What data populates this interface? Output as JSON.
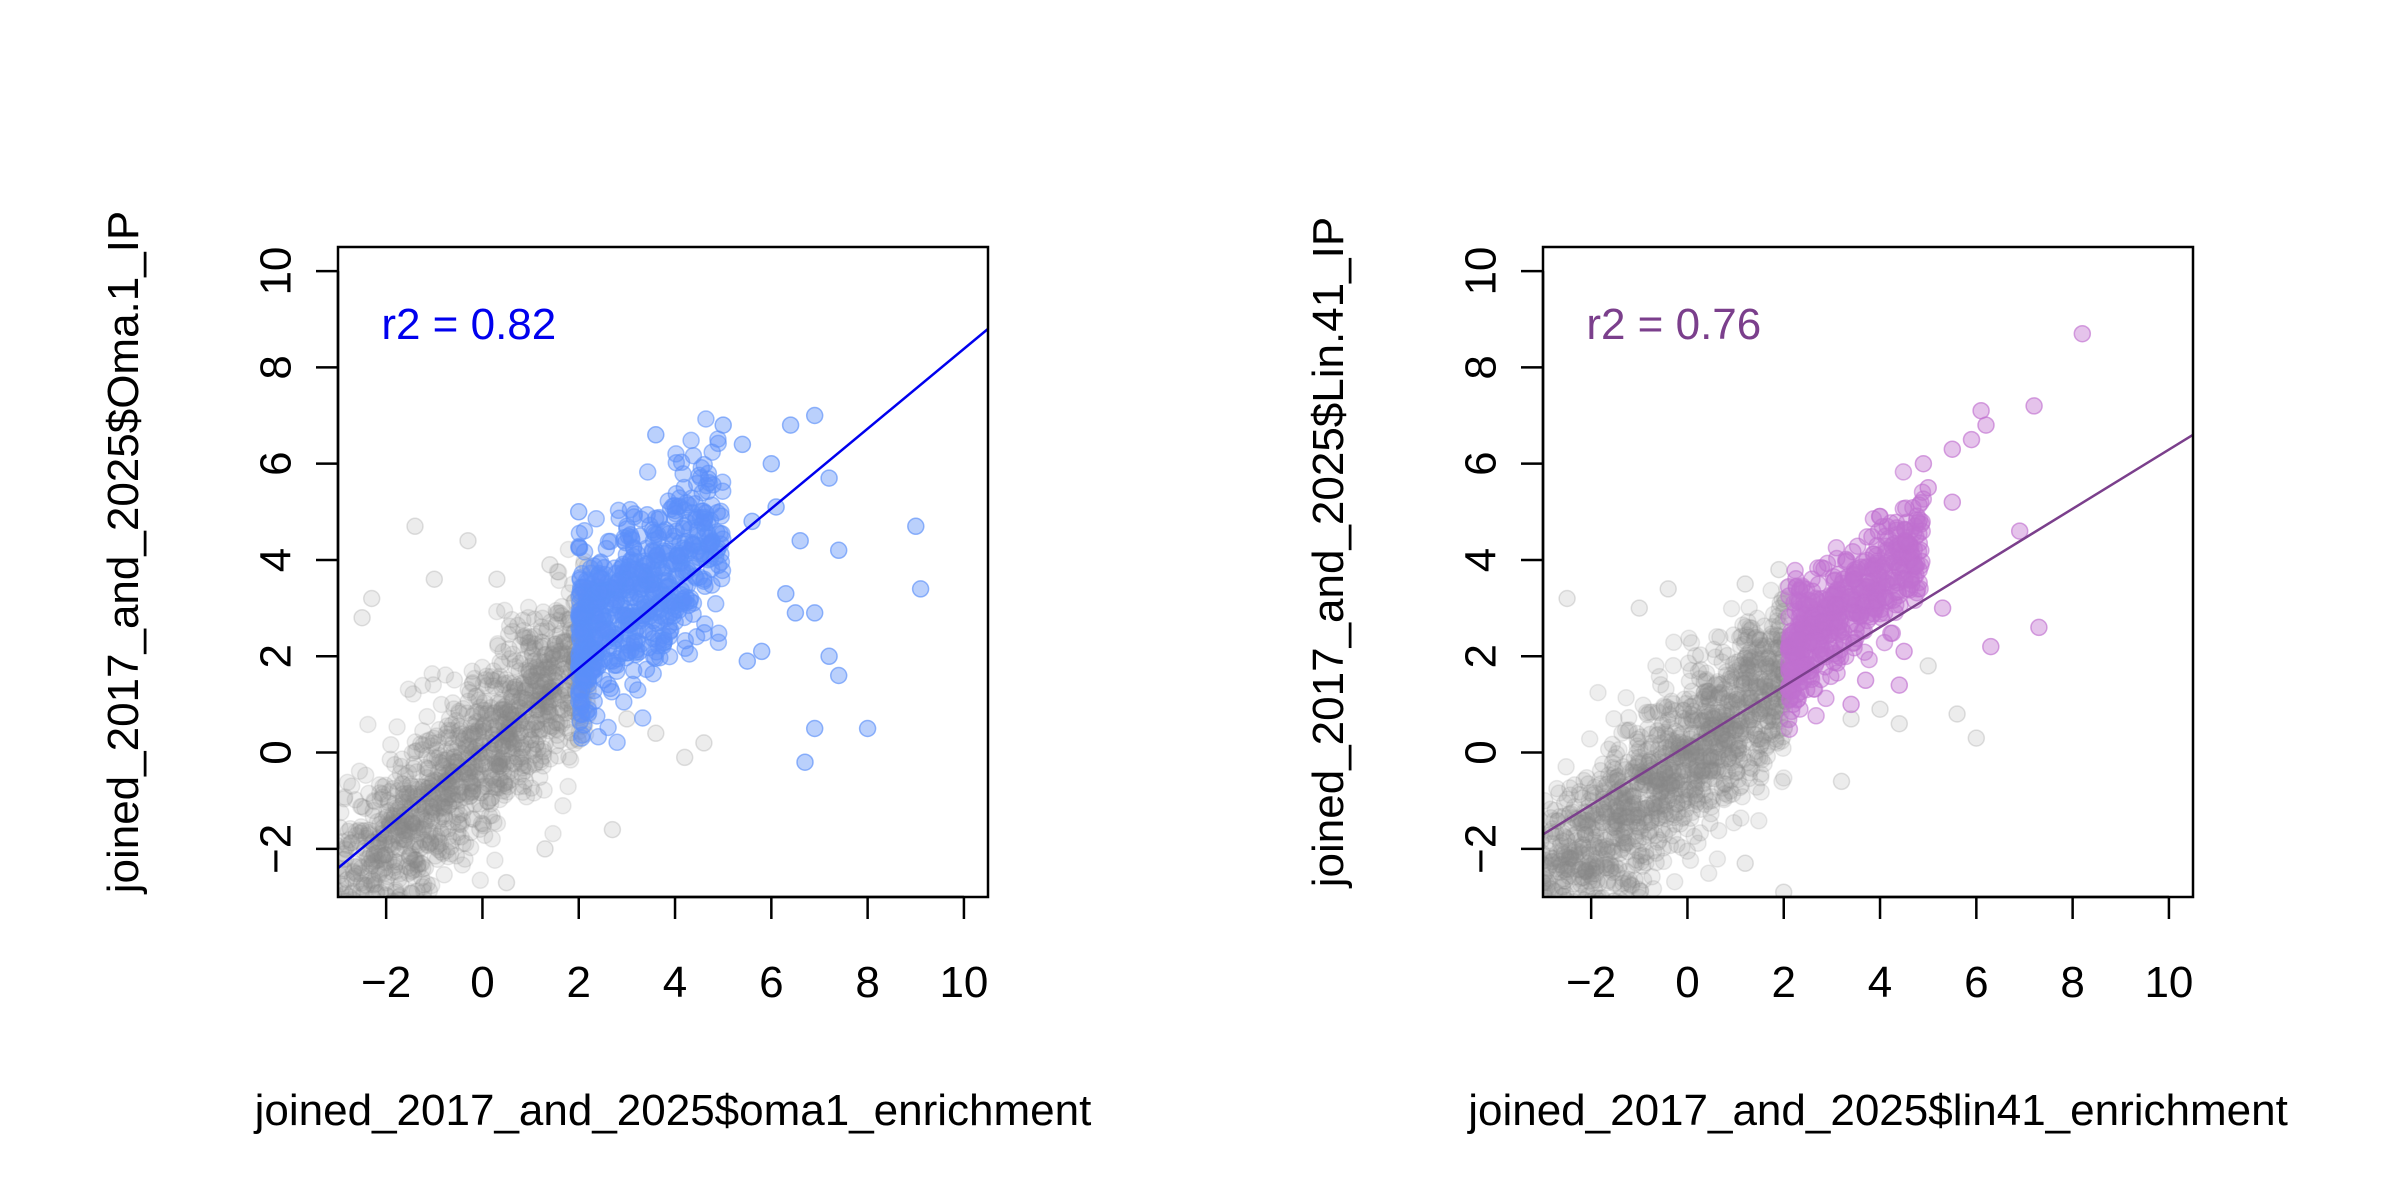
{
  "chart_data": [
    {
      "type": "scatter",
      "title": "",
      "xlabel": "joined_2017_and_2025$oma1_enrichment",
      "ylabel": "joined_2017_and_2025$Oma.1_IP",
      "xlim": [
        -3,
        10.5
      ],
      "ylim": [
        -3,
        10.5
      ],
      "xticks": [
        -2,
        0,
        2,
        4,
        6,
        8,
        10
      ],
      "yticks": [
        -2,
        0,
        2,
        4,
        6,
        8,
        10
      ],
      "grid": false,
      "annotation": {
        "text": "r2 = 0.82",
        "x": -2.1,
        "y": 8.9,
        "color": "#0000ee"
      },
      "fit_line": {
        "color": "#0000ee",
        "x": [
          -3,
          10.5
        ],
        "y": [
          -2.4,
          8.8
        ]
      },
      "series": [
        {
          "color": "#888888",
          "cloud": {
            "x_range": [
              -3.2,
              2.2
            ],
            "center_slope": 1.0,
            "center_intercept": 0.0,
            "spread": 0.9,
            "count": 1400
          },
          "points": [
            {
              "x": -2.3,
              "y": 3.2
            },
            {
              "x": -1.4,
              "y": 4.7
            },
            {
              "x": -1.0,
              "y": 3.6
            },
            {
              "x": -0.3,
              "y": 4.4
            },
            {
              "x": 0.3,
              "y": 3.6
            },
            {
              "x": 1.4,
              "y": 3.9
            },
            {
              "x": 2.1,
              "y": 3.9
            },
            {
              "x": -2.5,
              "y": 2.8
            },
            {
              "x": 3.0,
              "y": 0.7
            },
            {
              "x": 4.2,
              "y": -0.1
            },
            {
              "x": 4.6,
              "y": 0.2
            },
            {
              "x": 2.7,
              "y": -1.6
            },
            {
              "x": 1.3,
              "y": -2.0
            },
            {
              "x": 0.5,
              "y": -2.7
            },
            {
              "x": 3.6,
              "y": 0.4
            }
          ]
        },
        {
          "color": "#5b8ff9",
          "cloud": {
            "x_range": [
              2.0,
              5.0
            ],
            "center_slope": 0.8,
            "center_intercept": 0.7,
            "spread": 0.9,
            "count": 650
          },
          "points": [
            {
              "x": 3.6,
              "y": 6.6
            },
            {
              "x": 5.0,
              "y": 6.8
            },
            {
              "x": 5.4,
              "y": 6.4
            },
            {
              "x": 6.4,
              "y": 6.8
            },
            {
              "x": 6.9,
              "y": 7.0
            },
            {
              "x": 6.0,
              "y": 6.0
            },
            {
              "x": 7.2,
              "y": 5.7
            },
            {
              "x": 6.6,
              "y": 4.4
            },
            {
              "x": 7.4,
              "y": 4.2
            },
            {
              "x": 9.0,
              "y": 4.7
            },
            {
              "x": 9.1,
              "y": 3.4
            },
            {
              "x": 6.3,
              "y": 3.3
            },
            {
              "x": 6.5,
              "y": 2.9
            },
            {
              "x": 6.9,
              "y": 2.9
            },
            {
              "x": 7.2,
              "y": 2.0
            },
            {
              "x": 7.4,
              "y": 1.6
            },
            {
              "x": 6.9,
              "y": 0.5
            },
            {
              "x": 8.0,
              "y": 0.5
            },
            {
              "x": 6.7,
              "y": -0.2
            },
            {
              "x": 5.8,
              "y": 2.1
            },
            {
              "x": 5.5,
              "y": 1.9
            },
            {
              "x": 2.0,
              "y": 5.0
            },
            {
              "x": 6.1,
              "y": 5.1
            },
            {
              "x": 5.6,
              "y": 4.8
            }
          ]
        }
      ]
    },
    {
      "type": "scatter",
      "title": "",
      "xlabel": "joined_2017_and_2025$lin41_enrichment",
      "ylabel": "joined_2017_and_2025$Lin.41_IP",
      "xlim": [
        -3,
        10.5
      ],
      "ylim": [
        -3,
        10.5
      ],
      "xticks": [
        -2,
        0,
        2,
        4,
        6,
        8,
        10
      ],
      "yticks": [
        -2,
        0,
        2,
        4,
        6,
        8,
        10
      ],
      "grid": false,
      "annotation": {
        "text": "r2 = 0.76",
        "x": -2.1,
        "y": 8.9,
        "color": "#7b3f8c"
      },
      "fit_line": {
        "color": "#7b3f8c",
        "x": [
          -3,
          10.5
        ],
        "y": [
          -1.7,
          6.6
        ]
      },
      "series": [
        {
          "color": "#888888",
          "cloud": {
            "x_range": [
              -3.2,
              2.1
            ],
            "center_slope": 0.9,
            "center_intercept": -0.1,
            "spread": 0.9,
            "count": 1400
          },
          "points": [
            {
              "x": -2.5,
              "y": 3.2
            },
            {
              "x": -1.0,
              "y": 3.0
            },
            {
              "x": -0.4,
              "y": 3.4
            },
            {
              "x": 1.2,
              "y": 3.5
            },
            {
              "x": 1.9,
              "y": 3.8
            },
            {
              "x": 3.4,
              "y": 0.7
            },
            {
              "x": 4.0,
              "y": 0.9
            },
            {
              "x": 5.0,
              "y": 1.8
            },
            {
              "x": 5.6,
              "y": 0.8
            },
            {
              "x": 6.0,
              "y": 0.3
            },
            {
              "x": 2.0,
              "y": -2.9
            },
            {
              "x": 1.2,
              "y": -2.3
            },
            {
              "x": 3.2,
              "y": -0.6
            },
            {
              "x": 4.4,
              "y": 0.6
            }
          ]
        },
        {
          "color": "#c070d0",
          "cloud": {
            "x_range": [
              2.1,
              4.9
            ],
            "center_slope": 0.85,
            "center_intercept": 0.2,
            "spread": 0.6,
            "count": 550
          },
          "points": [
            {
              "x": 4.9,
              "y": 6.0
            },
            {
              "x": 5.5,
              "y": 6.3
            },
            {
              "x": 5.9,
              "y": 6.5
            },
            {
              "x": 6.2,
              "y": 6.8
            },
            {
              "x": 6.1,
              "y": 7.1
            },
            {
              "x": 7.2,
              "y": 7.2
            },
            {
              "x": 8.2,
              "y": 8.7
            },
            {
              "x": 5.0,
              "y": 5.5
            },
            {
              "x": 5.5,
              "y": 5.2
            },
            {
              "x": 6.9,
              "y": 4.6
            },
            {
              "x": 7.3,
              "y": 2.6
            },
            {
              "x": 6.3,
              "y": 2.2
            },
            {
              "x": 5.3,
              "y": 3.0
            },
            {
              "x": 4.5,
              "y": 2.1
            },
            {
              "x": 3.7,
              "y": 1.5
            },
            {
              "x": 3.4,
              "y": 1.0
            },
            {
              "x": 4.4,
              "y": 1.4
            }
          ]
        }
      ]
    }
  ]
}
